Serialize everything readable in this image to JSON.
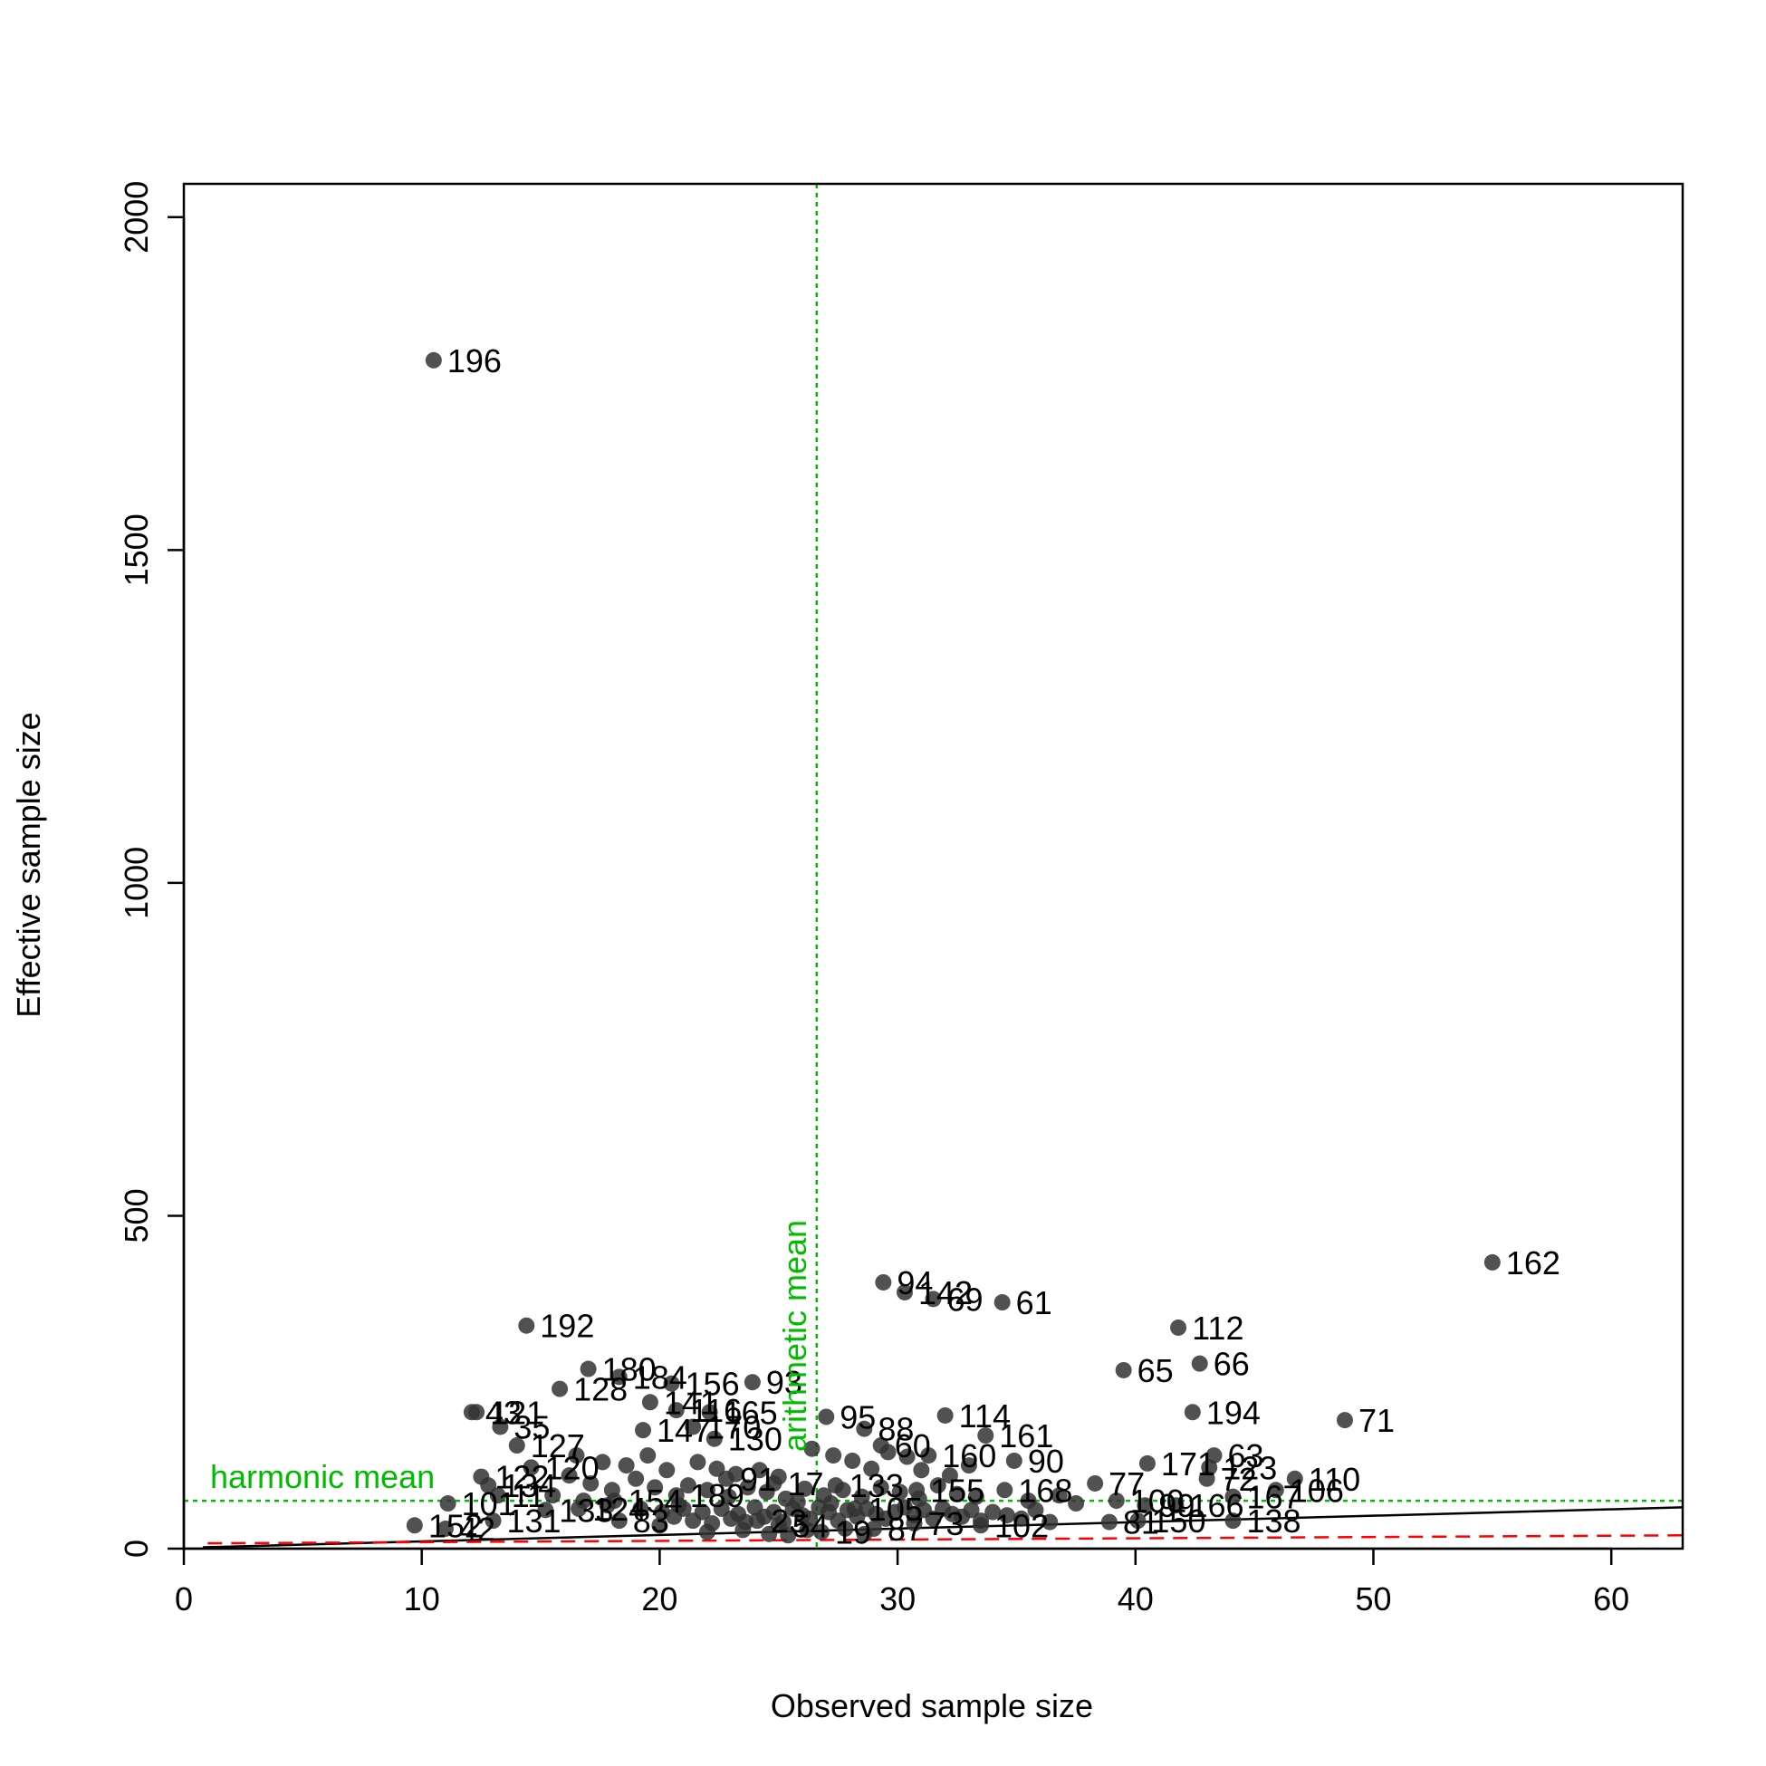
{
  "chart_data": {
    "type": "scatter",
    "title": "",
    "xlabel": "Observed sample size",
    "ylabel": "Effective sample size",
    "xlim": [
      0,
      63
    ],
    "ylim": [
      0,
      2050
    ],
    "x_ticks": [
      "0",
      "10",
      "20",
      "30",
      "40",
      "50",
      "60"
    ],
    "x_tick_values": [
      0,
      10,
      20,
      30,
      40,
      50,
      60
    ],
    "y_ticks": [
      "0",
      "500",
      "1000",
      "1500",
      "2000"
    ],
    "y_tick_values": [
      0,
      500,
      1000,
      1500,
      2000
    ],
    "grid": false,
    "point_color": "#333333",
    "reference_lines": {
      "harmonic_mean": {
        "label": "harmonic mean",
        "y": 72,
        "color": "#00bb00"
      },
      "arithmetic_mean": {
        "label": "arithmetic mean",
        "x": 26.6,
        "color": "#00bb00"
      },
      "fit_line": {
        "x": [
          0.8,
          63
        ],
        "y": [
          2,
          62
        ],
        "color": "#000000"
      },
      "red_dashed": {
        "x": [
          1,
          63
        ],
        "y": [
          8,
          20
        ],
        "color": "#ff0000"
      }
    },
    "points": [
      {
        "label": "196",
        "x": 10.5,
        "y": 1785
      },
      {
        "label": "162",
        "x": 55.0,
        "y": 430
      },
      {
        "label": "94",
        "x": 29.4,
        "y": 400
      },
      {
        "label": "142",
        "x": 30.3,
        "y": 385
      },
      {
        "label": "69",
        "x": 31.5,
        "y": 375
      },
      {
        "label": "61",
        "x": 34.4,
        "y": 370
      },
      {
        "label": "192",
        "x": 14.4,
        "y": 335
      },
      {
        "label": "112",
        "x": 41.8,
        "y": 332
      },
      {
        "label": "66",
        "x": 42.7,
        "y": 278
      },
      {
        "label": "65",
        "x": 39.5,
        "y": 268
      },
      {
        "label": "180",
        "x": 17.0,
        "y": 270
      },
      {
        "label": "128",
        "x": 15.8,
        "y": 240
      },
      {
        "label": "184",
        "x": 18.3,
        "y": 258
      },
      {
        "label": "156",
        "x": 20.5,
        "y": 248
      },
      {
        "label": "93",
        "x": 23.9,
        "y": 250
      },
      {
        "label": "141",
        "x": 19.6,
        "y": 220
      },
      {
        "label": "116",
        "x": 20.7,
        "y": 208
      },
      {
        "label": "165",
        "x": 22.1,
        "y": 205
      },
      {
        "label": "194",
        "x": 42.4,
        "y": 205
      },
      {
        "label": "71",
        "x": 48.8,
        "y": 193
      },
      {
        "label": "114",
        "x": 32.0,
        "y": 200
      },
      {
        "label": "95",
        "x": 27.0,
        "y": 198
      },
      {
        "label": "43",
        "x": 12.1,
        "y": 205
      },
      {
        "label": "121",
        "x": 12.3,
        "y": 205
      },
      {
        "label": "35",
        "x": 13.3,
        "y": 183
      },
      {
        "label": "88",
        "x": 28.6,
        "y": 180
      },
      {
        "label": "161",
        "x": 33.7,
        "y": 170
      },
      {
        "label": "147",
        "x": 19.3,
        "y": 178
      },
      {
        "label": "170",
        "x": 21.4,
        "y": 183
      },
      {
        "label": "130",
        "x": 22.3,
        "y": 165
      },
      {
        "label": "127",
        "x": 14.0,
        "y": 155
      },
      {
        "label": "60",
        "x": 29.3,
        "y": 155
      },
      {
        "label": "160",
        "x": 31.3,
        "y": 140
      },
      {
        "label": "90",
        "x": 34.9,
        "y": 132
      },
      {
        "label": "171",
        "x": 40.5,
        "y": 128
      },
      {
        "label": "63",
        "x": 43.3,
        "y": 140
      },
      {
        "label": "123",
        "x": 43.1,
        "y": 122
      },
      {
        "label": "110",
        "x": 46.7,
        "y": 105
      },
      {
        "label": "72",
        "x": 43.0,
        "y": 105
      },
      {
        "label": "106",
        "x": 45.9,
        "y": 88
      },
      {
        "label": "167",
        "x": 44.1,
        "y": 78
      },
      {
        "label": "138",
        "x": 44.1,
        "y": 42
      },
      {
        "label": "150",
        "x": 40.1,
        "y": 42
      },
      {
        "label": "81",
        "x": 38.9,
        "y": 40
      },
      {
        "label": "166",
        "x": 41.7,
        "y": 65
      },
      {
        "label": "100",
        "x": 39.2,
        "y": 72
      },
      {
        "label": "99",
        "x": 40.4,
        "y": 65
      },
      {
        "label": "77",
        "x": 38.3,
        "y": 98
      },
      {
        "label": "168",
        "x": 34.5,
        "y": 88
      },
      {
        "label": "102",
        "x": 33.5,
        "y": 35
      },
      {
        "label": "120",
        "x": 14.6,
        "y": 122
      },
      {
        "label": "122",
        "x": 12.5,
        "y": 108
      },
      {
        "label": "134",
        "x": 12.8,
        "y": 95
      },
      {
        "label": "101",
        "x": 11.1,
        "y": 68
      },
      {
        "label": "131",
        "x": 13.0,
        "y": 42
      },
      {
        "label": "152",
        "x": 9.7,
        "y": 35
      },
      {
        "label": "42",
        "x": 11.0,
        "y": 30
      },
      {
        "label": "11",
        "x": 13.2,
        "y": 80
      },
      {
        "label": "133",
        "x": 15.2,
        "y": 58
      },
      {
        "label": "124",
        "x": 16.6,
        "y": 60
      },
      {
        "label": "154",
        "x": 18.1,
        "y": 72
      },
      {
        "label": "83",
        "x": 18.3,
        "y": 42
      },
      {
        "label": "189",
        "x": 20.7,
        "y": 80
      },
      {
        "label": "91",
        "x": 22.8,
        "y": 105
      },
      {
        "label": "17",
        "x": 24.8,
        "y": 98
      },
      {
        "label": "133",
        "x": 27.4,
        "y": 95
      },
      {
        "label": "155",
        "x": 30.8,
        "y": 88
      },
      {
        "label": "19",
        "x": 26.8,
        "y": 25
      },
      {
        "label": "87",
        "x": 29.0,
        "y": 30
      },
      {
        "label": "73",
        "x": 30.7,
        "y": 38
      },
      {
        "label": "105",
        "x": 28.2,
        "y": 60
      },
      {
        "label": "54",
        "x": 25.0,
        "y": 35
      },
      {
        "label": "23",
        "x": 24.1,
        "y": 42
      }
    ],
    "cluster_points": [
      [
        20.1,
        55
      ],
      [
        20.6,
        48
      ],
      [
        21.0,
        60
      ],
      [
        21.4,
        42
      ],
      [
        21.8,
        55
      ],
      [
        22.2,
        38
      ],
      [
        22.6,
        60
      ],
      [
        23.0,
        45
      ],
      [
        23.3,
        52
      ],
      [
        23.6,
        40
      ],
      [
        24.0,
        62
      ],
      [
        24.4,
        48
      ],
      [
        24.8,
        55
      ],
      [
        25.2,
        40
      ],
      [
        25.6,
        60
      ],
      [
        26.0,
        50
      ],
      [
        26.3,
        45
      ],
      [
        26.7,
        62
      ],
      [
        27.1,
        55
      ],
      [
        27.5,
        42
      ],
      [
        27.9,
        58
      ],
      [
        28.3,
        48
      ],
      [
        28.7,
        60
      ],
      [
        29.1,
        52
      ],
      [
        29.5,
        45
      ],
      [
        29.9,
        55
      ],
      [
        30.3,
        62
      ],
      [
        30.7,
        50
      ],
      [
        31.1,
        58
      ],
      [
        31.5,
        45
      ],
      [
        31.9,
        60
      ],
      [
        32.3,
        52
      ],
      [
        32.7,
        48
      ],
      [
        33.1,
        58
      ],
      [
        33.5,
        42
      ],
      [
        34.0,
        55
      ],
      [
        34.6,
        50
      ],
      [
        35.2,
        45
      ],
      [
        35.8,
        58
      ],
      [
        36.4,
        40
      ],
      [
        21.2,
        95
      ],
      [
        22.0,
        88
      ],
      [
        22.9,
        78
      ],
      [
        23.7,
        92
      ],
      [
        24.5,
        85
      ],
      [
        25.3,
        75
      ],
      [
        26.1,
        90
      ],
      [
        26.9,
        80
      ],
      [
        27.7,
        88
      ],
      [
        28.5,
        78
      ],
      [
        29.3,
        92
      ],
      [
        30.1,
        85
      ],
      [
        30.9,
        75
      ],
      [
        31.7,
        95
      ],
      [
        32.5,
        82
      ],
      [
        33.3,
        78
      ],
      [
        16.2,
        110
      ],
      [
        17.1,
        98
      ],
      [
        18.0,
        88
      ],
      [
        19.0,
        105
      ],
      [
        19.8,
        92
      ],
      [
        20.3,
        118
      ],
      [
        21.6,
        130
      ],
      [
        22.4,
        120
      ],
      [
        23.2,
        112
      ],
      [
        24.2,
        118
      ],
      [
        25.0,
        108
      ],
      [
        26.4,
        150
      ],
      [
        27.3,
        140
      ],
      [
        28.1,
        132
      ],
      [
        28.9,
        120
      ],
      [
        29.6,
        145
      ],
      [
        30.4,
        138
      ],
      [
        31.0,
        118
      ],
      [
        32.2,
        110
      ],
      [
        33.0,
        125
      ],
      [
        16.5,
        140
      ],
      [
        17.6,
        130
      ],
      [
        18.6,
        125
      ],
      [
        19.5,
        140
      ],
      [
        15.5,
        80
      ],
      [
        16.8,
        72
      ],
      [
        17.8,
        65
      ],
      [
        19.2,
        60
      ],
      [
        25.4,
        20
      ],
      [
        26.2,
        28
      ],
      [
        27.8,
        30
      ],
      [
        28.6,
        22
      ],
      [
        35.5,
        72
      ],
      [
        36.8,
        80
      ],
      [
        37.5,
        68
      ],
      [
        22.0,
        25
      ],
      [
        23.5,
        28
      ],
      [
        24.6,
        22
      ],
      [
        20.0,
        35
      ],
      [
        20.8,
        65
      ],
      [
        25.8,
        70
      ],
      [
        27.2,
        68
      ]
    ]
  }
}
